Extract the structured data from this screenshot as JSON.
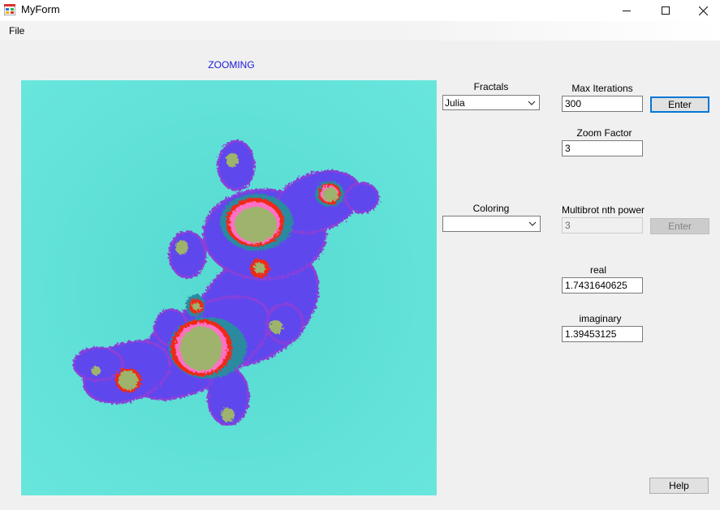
{
  "window": {
    "title": "MyForm"
  },
  "menu": {
    "file": "File"
  },
  "status": {
    "text": "ZOOMING",
    "color": "#1a1adb"
  },
  "fractals": {
    "label": "Fractals",
    "selected": "Julia"
  },
  "coloring": {
    "label": "Coloring",
    "selected": ""
  },
  "max_iterations": {
    "label": "Max Iterations",
    "value": "300",
    "enter": "Enter"
  },
  "zoom_factor": {
    "label": "Zoom Factor",
    "value": "3"
  },
  "multibrot": {
    "label": "Multibrot nth power",
    "value": "3",
    "enter": "Enter"
  },
  "real": {
    "label": "real",
    "value": "1.7431640625"
  },
  "imaginary": {
    "label": "imaginary",
    "value": "1.39453125"
  },
  "help": {
    "label": "Help"
  },
  "fractal_colors": {
    "background": "#63e2d8",
    "body": "#5f46ee",
    "edge": "#8a3fd8",
    "ring": "#ee2a14",
    "pink": "#ff6fc7",
    "core": "#9eb46c",
    "teal": "#2a8aa0"
  }
}
